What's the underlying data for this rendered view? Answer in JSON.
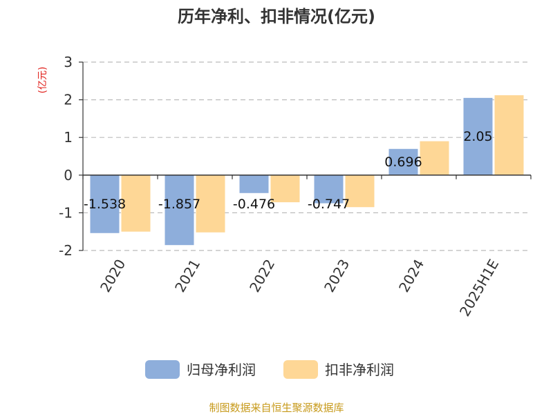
{
  "chart_data": {
    "type": "bar",
    "title": "历年净利、扣非情况(亿元)",
    "ylabel": "(亿元)",
    "categories": [
      "2020",
      "2021",
      "2022",
      "2023",
      "2024",
      "2025H1E"
    ],
    "series": [
      {
        "name": "归母净利润",
        "color": "#8eaedb",
        "values": [
          -1.538,
          -1.857,
          -0.476,
          -0.747,
          0.696,
          2.05
        ],
        "labels": [
          "-1.538",
          "-1.857",
          "-0.476",
          "-0.747",
          "0.696",
          "2.05"
        ]
      },
      {
        "name": "扣非净利润",
        "color": "#fed796",
        "values": [
          -1.5,
          -1.52,
          -0.72,
          -0.85,
          0.9,
          2.12
        ]
      }
    ],
    "ylim": [
      -2,
      3
    ],
    "yticks": [
      -2,
      -1,
      0,
      1,
      2,
      3
    ],
    "grid": true,
    "legend": "bottom",
    "source": "制图数据来自恒生聚源数据库"
  }
}
